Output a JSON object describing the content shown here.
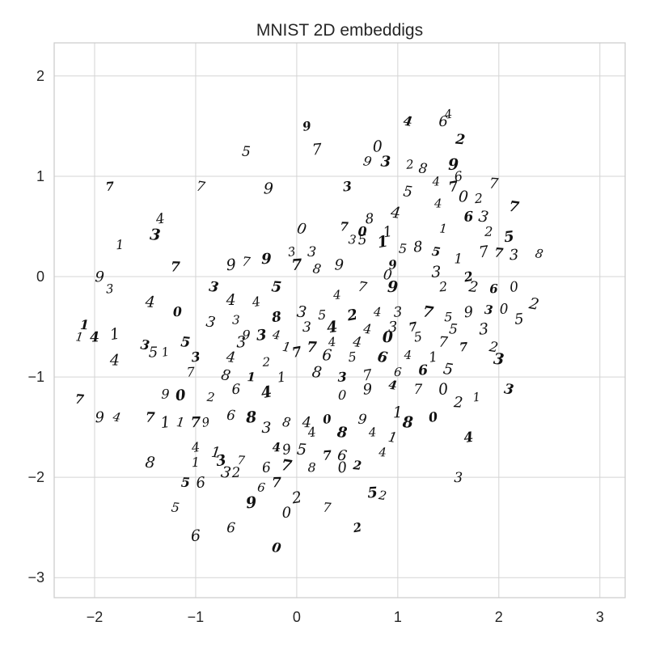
{
  "chart_data": {
    "type": "scatter",
    "title": "MNIST 2D embeddigs",
    "xlabel": "",
    "ylabel": "",
    "xlim": [
      -2.4,
      3.25
    ],
    "ylim": [
      -3.2,
      2.33
    ],
    "xticks": [
      -2,
      -1,
      0,
      1,
      2,
      3
    ],
    "yticks": [
      2,
      1,
      0,
      -1,
      -2,
      -3
    ],
    "xtick_labels": [
      "−2",
      "−1",
      "0",
      "1",
      "2",
      "3"
    ],
    "ytick_labels": [
      "2",
      "1",
      "0",
      "−1",
      "−2",
      "−3"
    ],
    "grid": true,
    "marker": "handwritten digit image",
    "points": [
      {
        "x": 0.1,
        "y": 1.5,
        "label": "9"
      },
      {
        "x": -0.5,
        "y": 1.25,
        "label": "5"
      },
      {
        "x": 0.2,
        "y": 1.27,
        "label": "7"
      },
      {
        "x": 1.1,
        "y": 1.55,
        "label": "4"
      },
      {
        "x": 1.45,
        "y": 1.55,
        "label": "6"
      },
      {
        "x": 1.5,
        "y": 1.62,
        "label": "4"
      },
      {
        "x": 1.62,
        "y": 1.37,
        "label": "2"
      },
      {
        "x": 0.8,
        "y": 1.3,
        "label": "0"
      },
      {
        "x": 0.7,
        "y": 1.15,
        "label": "9"
      },
      {
        "x": 0.88,
        "y": 1.15,
        "label": "3"
      },
      {
        "x": 1.12,
        "y": 1.12,
        "label": "2"
      },
      {
        "x": 1.25,
        "y": 1.08,
        "label": "8"
      },
      {
        "x": 1.55,
        "y": 1.12,
        "label": "9"
      },
      {
        "x": 1.6,
        "y": 1.0,
        "label": "6"
      },
      {
        "x": 1.95,
        "y": 0.93,
        "label": "7"
      },
      {
        "x": -1.85,
        "y": 0.9,
        "label": "7"
      },
      {
        "x": -0.95,
        "y": 0.9,
        "label": "7"
      },
      {
        "x": -0.28,
        "y": 0.88,
        "label": "9"
      },
      {
        "x": 0.5,
        "y": 0.9,
        "label": "3"
      },
      {
        "x": 1.1,
        "y": 0.85,
        "label": "5"
      },
      {
        "x": 1.38,
        "y": 0.95,
        "label": "4"
      },
      {
        "x": 1.55,
        "y": 0.9,
        "label": "7"
      },
      {
        "x": 1.65,
        "y": 0.8,
        "label": "0"
      },
      {
        "x": 1.8,
        "y": 0.78,
        "label": "2"
      },
      {
        "x": 2.15,
        "y": 0.7,
        "label": "7"
      },
      {
        "x": 1.4,
        "y": 0.73,
        "label": "4"
      },
      {
        "x": -1.35,
        "y": 0.58,
        "label": "4"
      },
      {
        "x": -1.4,
        "y": 0.42,
        "label": "3"
      },
      {
        "x": -1.75,
        "y": 0.32,
        "label": "1"
      },
      {
        "x": 0.05,
        "y": 0.48,
        "label": "0"
      },
      {
        "x": 0.47,
        "y": 0.5,
        "label": "7"
      },
      {
        "x": 0.72,
        "y": 0.58,
        "label": "8"
      },
      {
        "x": 0.98,
        "y": 0.64,
        "label": "4"
      },
      {
        "x": 0.65,
        "y": 0.45,
        "label": "0"
      },
      {
        "x": 0.9,
        "y": 0.45,
        "label": "1"
      },
      {
        "x": 1.45,
        "y": 0.48,
        "label": "1"
      },
      {
        "x": 1.7,
        "y": 0.6,
        "label": "6"
      },
      {
        "x": 1.85,
        "y": 0.6,
        "label": "3"
      },
      {
        "x": 1.9,
        "y": 0.45,
        "label": "2"
      },
      {
        "x": 2.1,
        "y": 0.4,
        "label": "5"
      },
      {
        "x": 0.55,
        "y": 0.37,
        "label": "3"
      },
      {
        "x": 0.65,
        "y": 0.37,
        "label": "5"
      },
      {
        "x": 0.85,
        "y": 0.35,
        "label": "1"
      },
      {
        "x": 1.05,
        "y": 0.28,
        "label": "5"
      },
      {
        "x": 1.2,
        "y": 0.3,
        "label": "8"
      },
      {
        "x": 1.38,
        "y": 0.25,
        "label": "5"
      },
      {
        "x": 1.6,
        "y": 0.18,
        "label": "1"
      },
      {
        "x": 1.85,
        "y": 0.25,
        "label": "7"
      },
      {
        "x": 2.0,
        "y": 0.24,
        "label": "7"
      },
      {
        "x": 2.15,
        "y": 0.22,
        "label": "3"
      },
      {
        "x": 2.4,
        "y": 0.23,
        "label": "8"
      },
      {
        "x": -1.2,
        "y": 0.1,
        "label": "7"
      },
      {
        "x": -0.65,
        "y": 0.12,
        "label": "9"
      },
      {
        "x": -0.5,
        "y": 0.15,
        "label": "7"
      },
      {
        "x": -0.3,
        "y": 0.18,
        "label": "9"
      },
      {
        "x": -0.05,
        "y": 0.25,
        "label": "3"
      },
      {
        "x": 0.15,
        "y": 0.25,
        "label": "3"
      },
      {
        "x": 0.0,
        "y": 0.12,
        "label": "7"
      },
      {
        "x": 0.2,
        "y": 0.08,
        "label": "8"
      },
      {
        "x": 0.42,
        "y": 0.12,
        "label": "9"
      },
      {
        "x": 0.95,
        "y": 0.12,
        "label": "9"
      },
      {
        "x": 0.9,
        "y": 0.02,
        "label": "0"
      },
      {
        "x": 1.38,
        "y": 0.05,
        "label": "3"
      },
      {
        "x": 1.7,
        "y": 0.0,
        "label": "2"
      },
      {
        "x": -1.95,
        "y": 0.0,
        "label": "9"
      },
      {
        "x": -1.85,
        "y": -0.12,
        "label": "3"
      },
      {
        "x": -0.82,
        "y": -0.1,
        "label": "3"
      },
      {
        "x": -0.65,
        "y": -0.23,
        "label": "4"
      },
      {
        "x": -0.4,
        "y": -0.25,
        "label": "4"
      },
      {
        "x": -0.2,
        "y": -0.1,
        "label": "5"
      },
      {
        "x": 0.4,
        "y": -0.18,
        "label": "4"
      },
      {
        "x": 0.65,
        "y": -0.1,
        "label": "7"
      },
      {
        "x": 0.95,
        "y": -0.1,
        "label": "9"
      },
      {
        "x": 1.45,
        "y": -0.1,
        "label": "2"
      },
      {
        "x": 1.75,
        "y": -0.1,
        "label": "2"
      },
      {
        "x": 1.95,
        "y": -0.12,
        "label": "6"
      },
      {
        "x": 2.15,
        "y": -0.1,
        "label": "0"
      },
      {
        "x": -1.45,
        "y": -0.25,
        "label": "4"
      },
      {
        "x": -1.18,
        "y": -0.35,
        "label": "0"
      },
      {
        "x": -0.85,
        "y": -0.45,
        "label": "3"
      },
      {
        "x": -0.6,
        "y": -0.43,
        "label": "3"
      },
      {
        "x": -0.2,
        "y": -0.4,
        "label": "8"
      },
      {
        "x": 0.05,
        "y": -0.35,
        "label": "3"
      },
      {
        "x": 0.25,
        "y": -0.38,
        "label": "5"
      },
      {
        "x": 0.55,
        "y": -0.38,
        "label": "2"
      },
      {
        "x": 0.8,
        "y": -0.35,
        "label": "4"
      },
      {
        "x": 1.0,
        "y": -0.35,
        "label": "3"
      },
      {
        "x": 1.3,
        "y": -0.35,
        "label": "7"
      },
      {
        "x": 1.5,
        "y": -0.4,
        "label": "5"
      },
      {
        "x": 1.7,
        "y": -0.35,
        "label": "9"
      },
      {
        "x": 1.9,
        "y": -0.33,
        "label": "3"
      },
      {
        "x": 2.05,
        "y": -0.32,
        "label": "0"
      },
      {
        "x": 2.35,
        "y": -0.27,
        "label": "2"
      },
      {
        "x": -2.1,
        "y": -0.48,
        "label": "1"
      },
      {
        "x": 2.2,
        "y": -0.42,
        "label": "5"
      },
      {
        "x": -2.15,
        "y": -0.6,
        "label": "1"
      },
      {
        "x": -2.0,
        "y": -0.6,
        "label": "4"
      },
      {
        "x": -1.8,
        "y": -0.57,
        "label": "1"
      },
      {
        "x": -0.5,
        "y": -0.58,
        "label": "9"
      },
      {
        "x": -0.35,
        "y": -0.58,
        "label": "3"
      },
      {
        "x": -0.2,
        "y": -0.58,
        "label": "4"
      },
      {
        "x": 0.1,
        "y": -0.5,
        "label": "3"
      },
      {
        "x": 0.35,
        "y": -0.5,
        "label": "4"
      },
      {
        "x": 0.7,
        "y": -0.52,
        "label": "4"
      },
      {
        "x": 0.95,
        "y": -0.5,
        "label": "3"
      },
      {
        "x": 1.15,
        "y": -0.5,
        "label": "7"
      },
      {
        "x": 1.55,
        "y": -0.52,
        "label": "5"
      },
      {
        "x": 1.85,
        "y": -0.52,
        "label": "3"
      },
      {
        "x": -1.5,
        "y": -0.68,
        "label": "3"
      },
      {
        "x": -1.42,
        "y": -0.75,
        "label": "5"
      },
      {
        "x": -1.3,
        "y": -0.75,
        "label": "1"
      },
      {
        "x": -1.1,
        "y": -0.65,
        "label": "5"
      },
      {
        "x": -0.55,
        "y": -0.65,
        "label": "3"
      },
      {
        "x": -0.1,
        "y": -0.7,
        "label": "1"
      },
      {
        "x": 0.15,
        "y": -0.7,
        "label": "7"
      },
      {
        "x": 0.35,
        "y": -0.65,
        "label": "4"
      },
      {
        "x": 0.6,
        "y": -0.65,
        "label": "4"
      },
      {
        "x": 0.9,
        "y": -0.6,
        "label": "0"
      },
      {
        "x": 1.2,
        "y": -0.6,
        "label": "5"
      },
      {
        "x": 1.45,
        "y": -0.65,
        "label": "7"
      },
      {
        "x": 1.65,
        "y": -0.7,
        "label": "7"
      },
      {
        "x": 1.95,
        "y": -0.7,
        "label": "2"
      },
      {
        "x": -1.8,
        "y": -0.83,
        "label": "4"
      },
      {
        "x": -1.0,
        "y": -0.8,
        "label": "3"
      },
      {
        "x": -0.65,
        "y": -0.8,
        "label": "4"
      },
      {
        "x": -0.3,
        "y": -0.85,
        "label": "2"
      },
      {
        "x": 0.0,
        "y": -0.75,
        "label": "7"
      },
      {
        "x": 0.3,
        "y": -0.78,
        "label": "6"
      },
      {
        "x": 0.55,
        "y": -0.8,
        "label": "5"
      },
      {
        "x": 0.85,
        "y": -0.8,
        "label": "6"
      },
      {
        "x": 1.1,
        "y": -0.78,
        "label": "4"
      },
      {
        "x": 1.35,
        "y": -0.8,
        "label": "1"
      },
      {
        "x": 2.0,
        "y": -0.82,
        "label": "3"
      },
      {
        "x": -1.05,
        "y": -0.95,
        "label": "7"
      },
      {
        "x": -0.7,
        "y": -0.98,
        "label": "8"
      },
      {
        "x": -0.45,
        "y": -1.0,
        "label": "1"
      },
      {
        "x": -0.15,
        "y": -1.0,
        "label": "1"
      },
      {
        "x": 0.2,
        "y": -0.95,
        "label": "8"
      },
      {
        "x": 0.45,
        "y": -1.0,
        "label": "3"
      },
      {
        "x": 0.7,
        "y": -0.98,
        "label": "7"
      },
      {
        "x": 1.0,
        "y": -0.95,
        "label": "6"
      },
      {
        "x": 1.25,
        "y": -0.93,
        "label": "6"
      },
      {
        "x": 1.5,
        "y": -0.92,
        "label": "5"
      },
      {
        "x": -1.3,
        "y": -1.17,
        "label": "9"
      },
      {
        "x": -1.15,
        "y": -1.18,
        "label": "0"
      },
      {
        "x": -0.85,
        "y": -1.2,
        "label": "2"
      },
      {
        "x": -0.6,
        "y": -1.12,
        "label": "6"
      },
      {
        "x": -0.3,
        "y": -1.15,
        "label": "4"
      },
      {
        "x": 0.45,
        "y": -1.18,
        "label": "0"
      },
      {
        "x": 0.7,
        "y": -1.12,
        "label": "9"
      },
      {
        "x": 0.95,
        "y": -1.08,
        "label": "4"
      },
      {
        "x": 1.2,
        "y": -1.12,
        "label": "7"
      },
      {
        "x": 1.45,
        "y": -1.12,
        "label": "0"
      },
      {
        "x": -2.15,
        "y": -1.22,
        "label": "7"
      },
      {
        "x": -1.95,
        "y": -1.4,
        "label": "9"
      },
      {
        "x": -1.78,
        "y": -1.4,
        "label": "4"
      },
      {
        "x": -1.45,
        "y": -1.4,
        "label": "7"
      },
      {
        "x": -1.3,
        "y": -1.45,
        "label": "1"
      },
      {
        "x": -1.15,
        "y": -1.45,
        "label": "1"
      },
      {
        "x": -1.0,
        "y": -1.45,
        "label": "7"
      },
      {
        "x": -0.9,
        "y": -1.45,
        "label": "9"
      },
      {
        "x": -0.65,
        "y": -1.38,
        "label": "6"
      },
      {
        "x": -0.45,
        "y": -1.4,
        "label": "8"
      },
      {
        "x": -0.1,
        "y": -1.45,
        "label": "8"
      },
      {
        "x": 0.1,
        "y": -1.45,
        "label": "4"
      },
      {
        "x": 0.3,
        "y": -1.42,
        "label": "0"
      },
      {
        "x": 0.65,
        "y": -1.42,
        "label": "9"
      },
      {
        "x": 1.0,
        "y": -1.35,
        "label": "1"
      },
      {
        "x": 1.35,
        "y": -1.4,
        "label": "0"
      },
      {
        "x": 1.6,
        "y": -1.25,
        "label": "2"
      },
      {
        "x": 1.78,
        "y": -1.2,
        "label": "1"
      },
      {
        "x": 2.1,
        "y": -1.12,
        "label": "3"
      },
      {
        "x": -0.3,
        "y": -1.5,
        "label": "3"
      },
      {
        "x": 0.15,
        "y": -1.55,
        "label": "4"
      },
      {
        "x": 0.45,
        "y": -1.55,
        "label": "8"
      },
      {
        "x": 0.75,
        "y": -1.55,
        "label": "4"
      },
      {
        "x": 0.95,
        "y": -1.6,
        "label": "1"
      },
      {
        "x": 1.1,
        "y": -1.45,
        "label": "8"
      },
      {
        "x": -1.0,
        "y": -1.7,
        "label": "4"
      },
      {
        "x": -0.8,
        "y": -1.75,
        "label": "1"
      },
      {
        "x": -0.2,
        "y": -1.7,
        "label": "4"
      },
      {
        "x": -0.1,
        "y": -1.72,
        "label": "9"
      },
      {
        "x": 0.05,
        "y": -1.72,
        "label": "5"
      },
      {
        "x": 0.3,
        "y": -1.78,
        "label": "7"
      },
      {
        "x": 0.45,
        "y": -1.78,
        "label": "6"
      },
      {
        "x": 0.85,
        "y": -1.75,
        "label": "4"
      },
      {
        "x": 1.7,
        "y": -1.6,
        "label": "4"
      },
      {
        "x": -1.45,
        "y": -1.85,
        "label": "8"
      },
      {
        "x": -1.0,
        "y": -1.85,
        "label": "1"
      },
      {
        "x": -0.75,
        "y": -1.83,
        "label": "3"
      },
      {
        "x": -0.55,
        "y": -1.83,
        "label": "7"
      },
      {
        "x": -0.3,
        "y": -1.9,
        "label": "6"
      },
      {
        "x": -0.1,
        "y": -1.88,
        "label": "7"
      },
      {
        "x": 0.15,
        "y": -1.9,
        "label": "8"
      },
      {
        "x": 0.45,
        "y": -1.9,
        "label": "0"
      },
      {
        "x": 0.6,
        "y": -1.88,
        "label": "2"
      },
      {
        "x": -0.6,
        "y": -1.95,
        "label": "2"
      },
      {
        "x": -0.7,
        "y": -1.95,
        "label": "3"
      },
      {
        "x": -1.1,
        "y": -2.05,
        "label": "5"
      },
      {
        "x": -0.95,
        "y": -2.05,
        "label": "6"
      },
      {
        "x": -0.35,
        "y": -2.1,
        "label": "6"
      },
      {
        "x": -0.2,
        "y": -2.05,
        "label": "7"
      },
      {
        "x": 0.0,
        "y": -2.2,
        "label": "2"
      },
      {
        "x": 0.3,
        "y": -2.3,
        "label": "7"
      },
      {
        "x": 0.75,
        "y": -2.15,
        "label": "5"
      },
      {
        "x": 0.85,
        "y": -2.18,
        "label": "2"
      },
      {
        "x": 1.6,
        "y": -2.0,
        "label": "3"
      },
      {
        "x": -0.45,
        "y": -2.25,
        "label": "9"
      },
      {
        "x": -1.2,
        "y": -2.3,
        "label": "5"
      },
      {
        "x": -0.1,
        "y": -2.35,
        "label": "0"
      },
      {
        "x": 0.6,
        "y": -2.5,
        "label": "2"
      },
      {
        "x": -0.65,
        "y": -2.5,
        "label": "6"
      },
      {
        "x": -1.0,
        "y": -2.58,
        "label": "6"
      },
      {
        "x": -0.2,
        "y": -2.7,
        "label": "0"
      }
    ]
  }
}
